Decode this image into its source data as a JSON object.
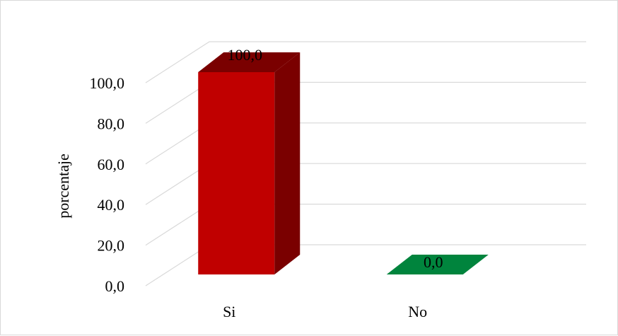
{
  "chart_data": {
    "type": "bar",
    "style": "3d-column",
    "categories": [
      "Si",
      "No"
    ],
    "values": [
      100.0,
      0.0
    ],
    "value_labels": [
      "100,0",
      "0,0"
    ],
    "colors": [
      "#c00000",
      "#00843d"
    ],
    "side_colors": [
      "#7a0000",
      "#006a30"
    ],
    "ylabel": "porcentaje",
    "xlabel": "",
    "title": "",
    "ylim": [
      0,
      100
    ],
    "yticks": [
      0,
      20,
      40,
      60,
      80,
      100
    ],
    "ytick_labels": [
      "0,0",
      "20,0",
      "40,0",
      "60,0",
      "80,0",
      "100,0"
    ],
    "grid": true,
    "legend": "none"
  }
}
